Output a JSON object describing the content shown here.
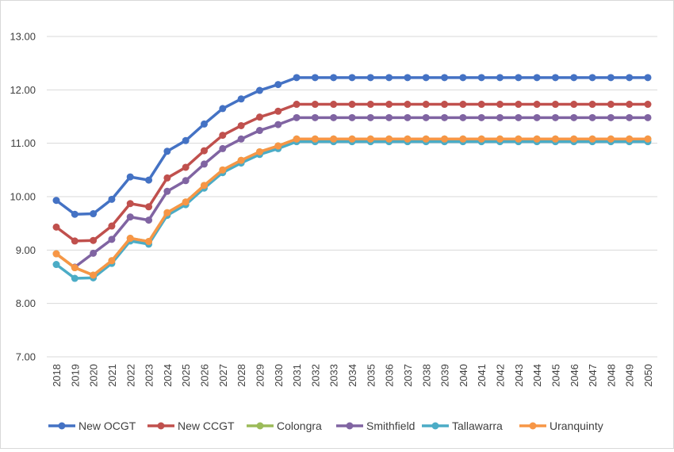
{
  "chart_data": {
    "type": "line",
    "title": "",
    "xlabel": "",
    "ylabel": "",
    "ylim": [
      7.0,
      13.0
    ],
    "yticks": [
      "7.00",
      "8.00",
      "9.00",
      "10.00",
      "11.00",
      "12.00",
      "13.00"
    ],
    "grid": "horizontal",
    "legend_position": "bottom",
    "categories": [
      "2018",
      "2019",
      "2020",
      "2021",
      "2022",
      "2023",
      "2024",
      "2025",
      "2026",
      "2027",
      "2028",
      "2029",
      "2030",
      "2031",
      "2032",
      "2033",
      "2034",
      "2035",
      "2036",
      "2037",
      "2038",
      "2039",
      "2040",
      "2041",
      "2042",
      "2043",
      "2044",
      "2045",
      "2046",
      "2047",
      "2048",
      "2049",
      "2050"
    ],
    "series": [
      {
        "name": "New OCGT",
        "color": "#4472c4",
        "values": [
          9.93,
          9.67,
          9.68,
          9.95,
          10.37,
          10.31,
          10.85,
          11.05,
          11.36,
          11.65,
          11.83,
          11.99,
          12.1,
          12.23,
          12.23,
          12.23,
          12.23,
          12.23,
          12.23,
          12.23,
          12.23,
          12.23,
          12.23,
          12.23,
          12.23,
          12.23,
          12.23,
          12.23,
          12.23,
          12.23,
          12.23,
          12.23,
          12.23
        ]
      },
      {
        "name": "New CCGT",
        "color": "#c0504d",
        "values": [
          9.43,
          9.17,
          9.18,
          9.45,
          9.87,
          9.81,
          10.35,
          10.55,
          10.86,
          11.15,
          11.33,
          11.49,
          11.6,
          11.73,
          11.73,
          11.73,
          11.73,
          11.73,
          11.73,
          11.73,
          11.73,
          11.73,
          11.73,
          11.73,
          11.73,
          11.73,
          11.73,
          11.73,
          11.73,
          11.73,
          11.73,
          11.73,
          11.73
        ]
      },
      {
        "name": "Colongra",
        "color": "#9bbb59",
        "values": [
          8.93,
          8.67,
          8.53,
          8.8,
          9.22,
          9.16,
          9.7,
          9.9,
          10.21,
          10.5,
          10.68,
          10.84,
          10.95,
          11.08,
          11.08,
          11.08,
          11.08,
          11.08,
          11.08,
          11.08,
          11.08,
          11.08,
          11.08,
          11.08,
          11.08,
          11.08,
          11.08,
          11.08,
          11.08,
          11.08,
          11.08,
          11.08,
          11.08
        ]
      },
      {
        "name": "Smithfield",
        "color": "#8064a2",
        "values": [
          null,
          8.68,
          8.94,
          9.2,
          9.62,
          9.56,
          10.1,
          10.3,
          10.61,
          10.9,
          11.08,
          11.24,
          11.35,
          11.48,
          11.48,
          11.48,
          11.48,
          11.48,
          11.48,
          11.48,
          11.48,
          11.48,
          11.48,
          11.48,
          11.48,
          11.48,
          11.48,
          11.48,
          11.48,
          11.48,
          11.48,
          11.48,
          11.48
        ]
      },
      {
        "name": "Tallawarra",
        "color": "#4bacc6",
        "values": [
          8.73,
          8.47,
          8.48,
          8.75,
          9.17,
          9.11,
          9.65,
          9.85,
          10.16,
          10.45,
          10.63,
          10.79,
          10.9,
          11.03,
          11.03,
          11.03,
          11.03,
          11.03,
          11.03,
          11.03,
          11.03,
          11.03,
          11.03,
          11.03,
          11.03,
          11.03,
          11.03,
          11.03,
          11.03,
          11.03,
          11.03,
          11.03,
          11.03
        ]
      },
      {
        "name": "Uranquinty",
        "color": "#f79646",
        "values": [
          8.93,
          8.67,
          8.53,
          8.8,
          9.22,
          9.16,
          9.7,
          9.9,
          10.21,
          10.5,
          10.68,
          10.84,
          10.95,
          11.08,
          11.08,
          11.08,
          11.08,
          11.08,
          11.08,
          11.08,
          11.08,
          11.08,
          11.08,
          11.08,
          11.08,
          11.08,
          11.08,
          11.08,
          11.08,
          11.08,
          11.08,
          11.08,
          11.08
        ]
      }
    ]
  }
}
